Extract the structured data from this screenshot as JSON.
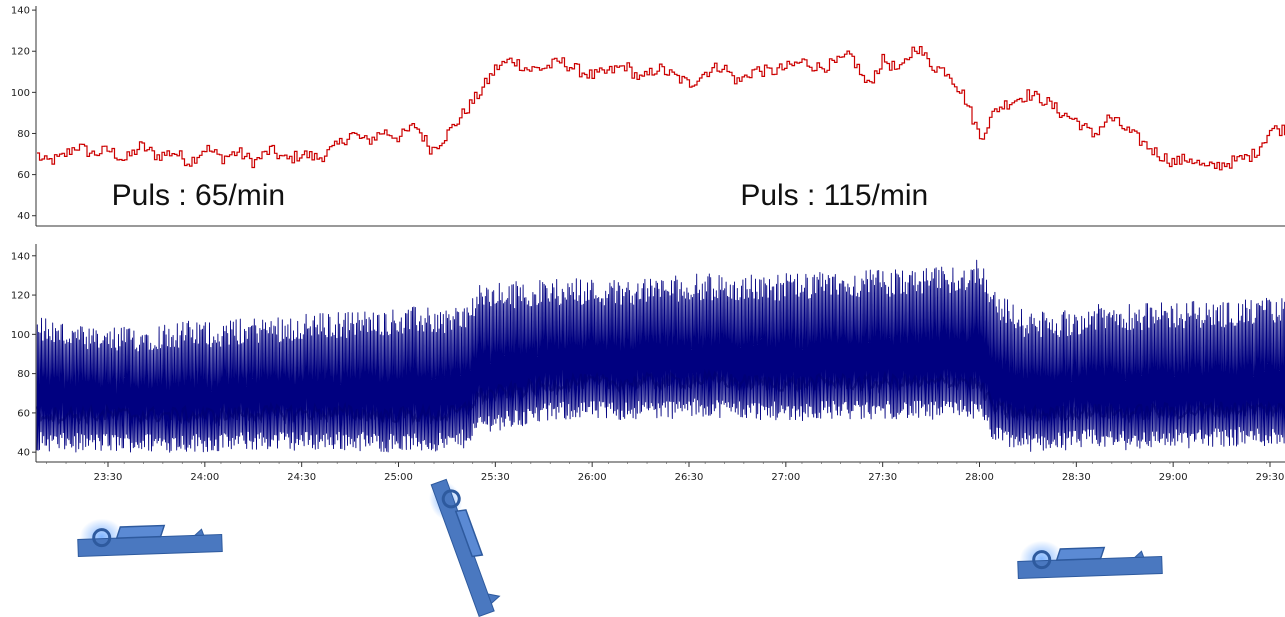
{
  "chart_data": [
    {
      "type": "line",
      "name": "pulse-chart",
      "xlabel": "",
      "ylabel": "",
      "x_unit": "mm:ss",
      "ylim": [
        35,
        142
      ],
      "yticks": [
        40,
        60,
        80,
        100,
        120,
        140
      ],
      "grid": false,
      "color": "#cc0000",
      "annotations": [
        {
          "text": "Puls : 65/min",
          "x": "23:58"
        },
        {
          "text": "Puls : 115/min",
          "x": "27:15"
        }
      ],
      "series": [
        {
          "x": [
            "23:05",
            "23:10",
            "23:15",
            "23:20",
            "23:25",
            "23:30",
            "23:35",
            "23:40",
            "23:45",
            "23:50",
            "23:55",
            "24:00",
            "24:05",
            "24:10",
            "24:15",
            "24:20",
            "24:25",
            "24:30",
            "24:35",
            "24:40",
            "24:45",
            "24:50",
            "24:55",
            "25:00",
            "25:05",
            "25:10",
            "25:15",
            "25:20",
            "25:25",
            "25:30",
            "25:35",
            "25:40",
            "25:45",
            "25:50",
            "25:55",
            "26:00",
            "26:05",
            "26:10",
            "26:15",
            "26:20",
            "26:25",
            "26:30",
            "26:35",
            "26:40",
            "26:45",
            "26:50",
            "26:55",
            "27:00",
            "27:05",
            "27:10",
            "27:15",
            "27:20",
            "27:25",
            "27:30",
            "27:35",
            "27:40",
            "27:45",
            "27:50",
            "27:55",
            "28:00",
            "28:05",
            "28:10",
            "28:15",
            "28:20",
            "28:25",
            "28:30",
            "28:35",
            "28:40",
            "28:45",
            "28:50",
            "28:55",
            "29:00",
            "29:05",
            "29:10",
            "29:15",
            "29:20",
            "29:25",
            "29:30"
          ],
          "values": [
            75,
            66,
            68,
            74,
            70,
            72,
            67,
            74,
            69,
            71,
            66,
            73,
            68,
            71,
            66,
            72,
            67,
            70,
            68,
            73,
            80,
            76,
            81,
            78,
            84,
            72,
            80,
            90,
            100,
            112,
            116,
            111,
            112,
            115,
            111,
            108,
            110,
            113,
            106,
            112,
            108,
            104,
            110,
            113,
            105,
            111,
            110,
            112,
            115,
            112,
            114,
            118,
            103,
            116,
            110,
            123,
            113,
            110,
            98,
            78,
            92,
            96,
            99,
            96,
            90,
            86,
            79,
            88,
            82,
            76,
            70,
            66,
            68,
            63,
            65,
            67,
            70,
            82
          ]
        }
      ]
    },
    {
      "type": "line",
      "name": "blood-pressure-chart",
      "xlabel": "",
      "ylabel": "",
      "x_unit": "mm:ss",
      "ylim": [
        35,
        146
      ],
      "yticks": [
        40,
        60,
        80,
        100,
        120,
        140
      ],
      "xticks": [
        "23:30",
        "24:00",
        "24:30",
        "25:00",
        "25:30",
        "26:00",
        "26:30",
        "27:00",
        "27:30",
        "28:00",
        "28:30",
        "29:00",
        "29:30"
      ],
      "grid": false,
      "color": "#000080",
      "series": [
        {
          "name": "systolic",
          "x": [
            "23:05",
            "23:15",
            "23:25",
            "23:35",
            "23:45",
            "23:55",
            "24:05",
            "24:15",
            "24:25",
            "24:35",
            "24:45",
            "24:55",
            "25:05",
            "25:15",
            "25:20",
            "25:25",
            "25:35",
            "25:45",
            "25:55",
            "26:05",
            "26:15",
            "26:25",
            "26:35",
            "26:45",
            "26:55",
            "27:05",
            "27:15",
            "27:25",
            "27:35",
            "27:45",
            "27:55",
            "28:00",
            "28:05",
            "28:15",
            "28:25",
            "28:35",
            "28:45",
            "28:55",
            "29:05",
            "29:15",
            "29:25",
            "29:30"
          ],
          "values": [
            105,
            100,
            96,
            97,
            99,
            100,
            100,
            102,
            103,
            104,
            105,
            106,
            107,
            107,
            108,
            118,
            120,
            121,
            122,
            121,
            122,
            123,
            124,
            123,
            124,
            124,
            125,
            126,
            126,
            127,
            128,
            133,
            115,
            104,
            105,
            108,
            109,
            109,
            110,
            110,
            111,
            112
          ]
        },
        {
          "name": "diastolic",
          "x": [
            "23:05",
            "23:15",
            "23:25",
            "23:35",
            "23:45",
            "23:55",
            "24:05",
            "24:15",
            "24:25",
            "24:35",
            "24:45",
            "24:55",
            "25:05",
            "25:15",
            "25:20",
            "25:25",
            "25:35",
            "25:45",
            "25:55",
            "26:05",
            "26:15",
            "26:25",
            "26:35",
            "26:45",
            "26:55",
            "27:05",
            "27:15",
            "27:25",
            "27:35",
            "27:45",
            "27:55",
            "28:00",
            "28:05",
            "28:15",
            "28:25",
            "28:35",
            "28:45",
            "28:55",
            "29:05",
            "29:15",
            "29:25",
            "29:30"
          ],
          "values": [
            46,
            45,
            45,
            45,
            45,
            45,
            45,
            46,
            46,
            46,
            46,
            45,
            45,
            45,
            47,
            55,
            57,
            60,
            62,
            61,
            62,
            62,
            63,
            62,
            61,
            61,
            62,
            61,
            62,
            61,
            63,
            60,
            48,
            45,
            46,
            47,
            46,
            47,
            47,
            48,
            48,
            48
          ]
        }
      ]
    }
  ],
  "illustrations": [
    {
      "name": "supine-position-icon",
      "position": "lying"
    },
    {
      "name": "tilt-position-icon",
      "position": "upright-tilt"
    },
    {
      "name": "supine-position-icon",
      "position": "lying"
    }
  ]
}
